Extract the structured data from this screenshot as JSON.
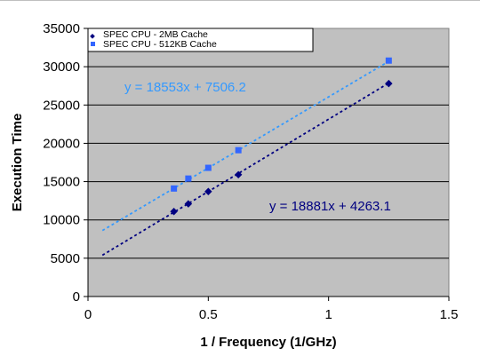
{
  "colors": {
    "plot_bg": "#c0c0c0",
    "series_2mb": "#000080",
    "series_512kb": "#3366ff",
    "trend_2mb": "#000080",
    "trend_512kb": "#3399ff"
  },
  "chart_data": {
    "type": "scatter",
    "title": "",
    "xlabel": "1 / Frequency (1/GHz)",
    "ylabel": "Execution Time",
    "xlim": [
      0,
      1.5
    ],
    "ylim": [
      0,
      35000
    ],
    "xticks": [
      "0",
      "0.5",
      "1",
      "1.5"
    ],
    "yticks": [
      "0",
      "5000",
      "10000",
      "15000",
      "20000",
      "25000",
      "30000",
      "35000"
    ],
    "grid": "horizontal",
    "legend": "top",
    "series": [
      {
        "name": "SPEC CPU - 2MB Cache",
        "marker": "diamond",
        "x": [
          0.357,
          0.417,
          0.5,
          0.625,
          1.25
        ],
        "y": [
          11100,
          12100,
          13700,
          15900,
          27800
        ]
      },
      {
        "name": "SPEC CPU - 512KB Cache",
        "marker": "square",
        "x": [
          0.357,
          0.417,
          0.5,
          0.625,
          1.25
        ],
        "y": [
          14100,
          15400,
          16800,
          19100,
          30800
        ]
      }
    ],
    "trendlines": [
      {
        "series": "SPEC CPU - 2MB Cache",
        "slope": 18881,
        "intercept": 4263.1,
        "label": "y = 18881x + 4263.1"
      },
      {
        "series": "SPEC CPU - 512KB Cache",
        "slope": 18553,
        "intercept": 7506.2,
        "label": "y = 18553x + 7506.2"
      }
    ]
  }
}
